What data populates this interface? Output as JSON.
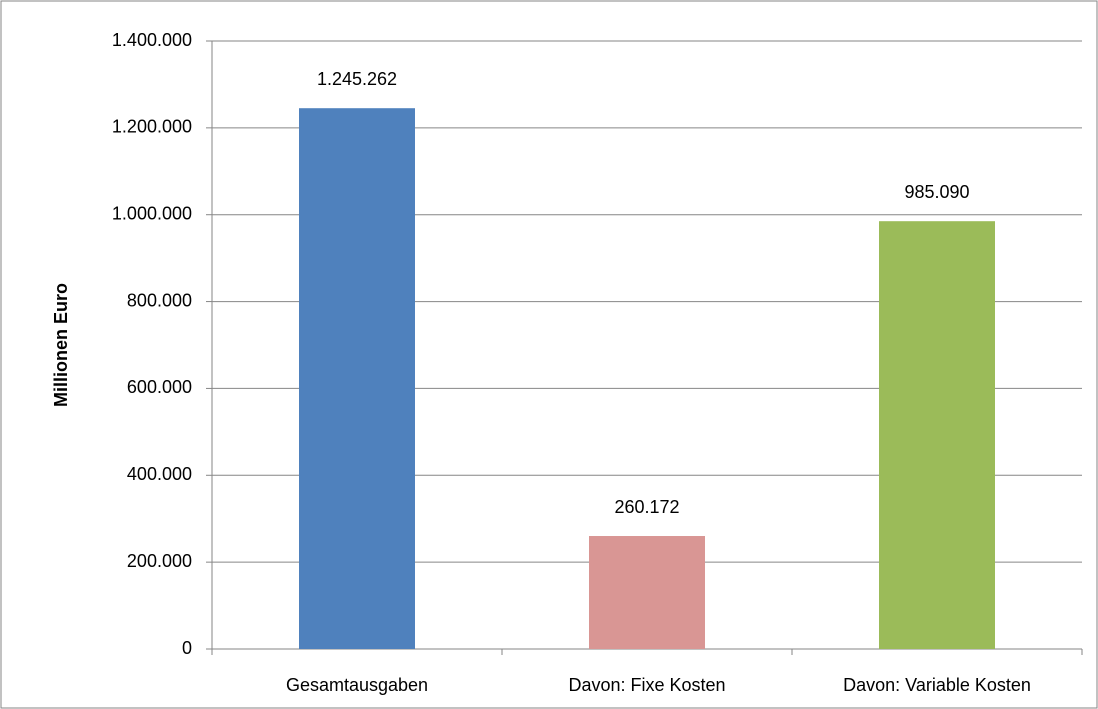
{
  "chart_data": {
    "type": "bar",
    "y_label": "Millionen Euro",
    "categories": [
      "Gesamtausgaben",
      "Davon: Fixe Kosten",
      "Davon: Variable Kosten"
    ],
    "values": [
      1245262,
      260172,
      985090
    ],
    "value_labels": [
      "1.245.262",
      "260.172",
      "985.090"
    ],
    "colors": [
      "#4f81bd",
      "#d99694",
      "#9bbb59"
    ],
    "ylim": [
      0,
      1400000
    ],
    "yticks": [
      0,
      {
        "value": 200000,
        "label": "200.000"
      },
      {
        "value": 400000,
        "label": "400.000"
      },
      {
        "value": 600000,
        "label": "600.000"
      },
      {
        "value": 800000,
        "label": "800.000"
      },
      {
        "value": 1000000,
        "label": "1.000.000"
      },
      {
        "value": 1200000,
        "label": "1.200.000"
      },
      {
        "value": 1400000,
        "label": "1.400.000"
      }
    ],
    "grid": true
  }
}
